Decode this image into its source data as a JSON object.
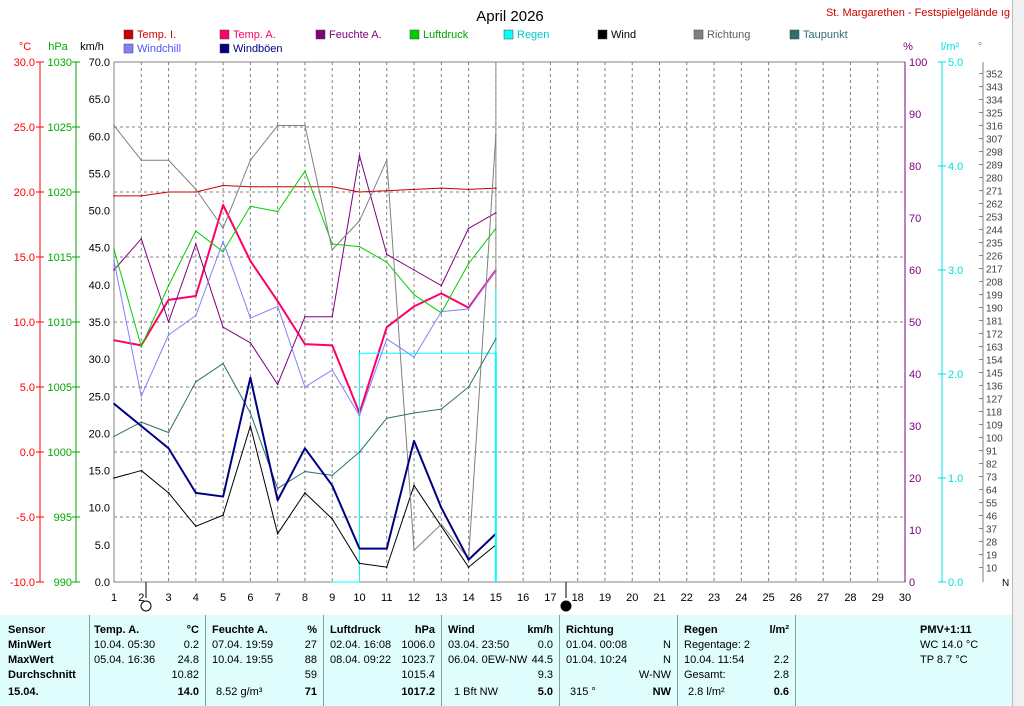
{
  "chart_data": {
    "type": "line",
    "title": "April 2026",
    "station": "St. Margarethen - Festspielgelände ıg",
    "x": [
      1,
      2,
      3,
      4,
      5,
      6,
      7,
      8,
      9,
      10,
      11,
      12,
      13,
      14,
      15
    ],
    "xticks": [
      1,
      2,
      3,
      4,
      5,
      6,
      7,
      8,
      9,
      10,
      11,
      12,
      13,
      14,
      15,
      16,
      17,
      18,
      19,
      20,
      21,
      22,
      23,
      24,
      25,
      26,
      27,
      28,
      29,
      30
    ],
    "xlim": [
      1,
      30
    ],
    "current_day": 15,
    "axes": {
      "temp": {
        "unit": "°C",
        "ylim": [
          -10,
          30
        ],
        "ticks": [
          "30.0",
          "25.0",
          "20.0",
          "15.0",
          "10.0",
          "5.0",
          "0.0",
          "-5.0",
          "-10.0"
        ],
        "color": "#ff0000"
      },
      "press": {
        "unit": "hPa",
        "ylim": [
          990,
          1030
        ],
        "ticks": [
          "1030",
          "1025",
          "1020",
          "1015",
          "1010",
          "1005",
          "1000",
          "995",
          "990"
        ],
        "color": "#00aa00"
      },
      "wind": {
        "unit": "km/h",
        "ylim": [
          0,
          70
        ],
        "ticks": [
          "70.0",
          "65.0",
          "60.0",
          "55.0",
          "50.0",
          "45.0",
          "40.0",
          "35.0",
          "30.0",
          "25.0",
          "20.0",
          "15.0",
          "10.0",
          "5.0",
          "0.0"
        ],
        "color": "#000000"
      },
      "hum": {
        "unit": "%",
        "ylim": [
          0,
          100
        ],
        "ticks": [
          "100",
          "90",
          "80",
          "70",
          "60",
          "50",
          "40",
          "30",
          "20",
          "10",
          "0"
        ],
        "color": "#800080"
      },
      "rain": {
        "unit": "l/m²",
        "ylim": [
          0,
          5
        ],
        "ticks": [
          "5.0",
          "4.0",
          "3.0",
          "2.0",
          "1.0",
          "0.0"
        ],
        "color": "#00e0e0"
      },
      "dir": {
        "unit": "°",
        "ylim": [
          0,
          360
        ],
        "ticks": [
          "352",
          "343",
          "334",
          "325",
          "316",
          "307",
          "298",
          "289",
          "280",
          "271",
          "262",
          "253",
          "244",
          "235",
          "226",
          "217",
          "208",
          "199",
          "190",
          "181",
          "172",
          "163",
          "154",
          "145",
          "136",
          "127",
          "118",
          "109",
          "100",
          "91",
          "82",
          "73",
          "64",
          "55",
          "46",
          "37",
          "28",
          "19",
          "10"
        ],
        "dir_bottom_label": "N"
      }
    },
    "series": [
      {
        "name": "Temp. I.",
        "axis": "temp",
        "color": "#cc0000",
        "width": 1,
        "values": [
          19.7,
          19.7,
          20.0,
          20.0,
          20.5,
          20.4,
          20.4,
          20.4,
          20.4,
          20.0,
          20.1,
          20.2,
          20.3,
          20.2,
          20.3
        ]
      },
      {
        "name": "Temp. A.",
        "axis": "temp",
        "color": "#ff0066",
        "width": 2,
        "values": [
          8.6,
          8.2,
          11.7,
          12.0,
          19.0,
          14.7,
          11.6,
          8.3,
          8.2,
          3.0,
          9.6,
          11.2,
          12.2,
          11.1,
          14.0
        ]
      },
      {
        "name": "Feuchte A.",
        "axis": "hum",
        "color": "#800080",
        "width": 1,
        "values": [
          60,
          66,
          50,
          65,
          49,
          46,
          38,
          51,
          51,
          82,
          63,
          60,
          57,
          68,
          71
        ]
      },
      {
        "name": "Luftdruck",
        "axis": "press",
        "color": "#00d000",
        "width": 1,
        "values": [
          1015.6,
          1008.1,
          1012.8,
          1017.0,
          1015.4,
          1018.9,
          1018.5,
          1021.6,
          1016.0,
          1015.8,
          1014.6,
          1012.1,
          1010.7,
          1014.5,
          1017.2
        ]
      },
      {
        "name": "Regen",
        "axis": "rain",
        "color": "#00ffff",
        "width": 1,
        "values": [
          null,
          null,
          null,
          null,
          null,
          null,
          null,
          null,
          0.0,
          2.2,
          2.2,
          2.2,
          2.2,
          2.2,
          2.8
        ]
      },
      {
        "name": "Wind",
        "axis": "wind",
        "color": "#000000",
        "width": 1,
        "values": [
          14.0,
          15.0,
          12.0,
          7.5,
          9.0,
          21.0,
          6.5,
          12.0,
          8.5,
          2.5,
          2.0,
          13.0,
          7.5,
          2.0,
          5.0
        ]
      },
      {
        "name": "Richtung",
        "axis": "dir",
        "color": "#808080",
        "width": 1,
        "values": [
          316,
          292,
          292,
          272,
          245,
          292,
          316,
          316,
          230,
          250,
          292,
          22,
          40,
          16,
          310
        ]
      },
      {
        "name": "Taupunkt",
        "axis": "temp",
        "color": "#2f6f6f",
        "width": 1,
        "values": [
          1.2,
          2.3,
          1.5,
          5.4,
          6.8,
          3.0,
          -2.8,
          -1.5,
          -1.8,
          0.0,
          2.6,
          3.0,
          3.3,
          5.0,
          8.7
        ]
      },
      {
        "name": "Windchill",
        "axis": "temp",
        "color": "#8080ff",
        "width": 1,
        "values": [
          14.7,
          4.3,
          9.0,
          10.5,
          16.2,
          10.3,
          11.2,
          5.0,
          6.3,
          2.8,
          8.7,
          7.3,
          10.8,
          11.0,
          14.0
        ]
      },
      {
        "name": "Windböen",
        "axis": "wind",
        "color": "#000080",
        "width": 2,
        "values": [
          24.0,
          21.0,
          18.0,
          12.0,
          11.5,
          27.5,
          11.0,
          18.0,
          13.0,
          4.5,
          4.5,
          19.0,
          10.0,
          3.0,
          6.5
        ]
      }
    ]
  },
  "stats": {
    "sensor": {
      "h": "Sensor",
      "min": "MinWert",
      "max": "MaxWert",
      "avg": "Durchschnitt",
      "cur": "15.04."
    },
    "temp": {
      "h": "Temp. A.",
      "unit": "°C",
      "min_t": "10.04.  05:30",
      "min_v": "0.2",
      "max_t": "05.04.  16:36",
      "max_v": "24.8",
      "avg": "10.82",
      "cur": "14.0"
    },
    "hum": {
      "h": "Feuchte A.",
      "unit": "%",
      "min_t": "07.04.  19:59",
      "min_v": "27",
      "max_t": "10.04.  19:55",
      "max_v": "88",
      "avg": "59",
      "cur_l": "8.52 g/m³",
      "cur": "71"
    },
    "press": {
      "h": "Luftdruck",
      "unit": "hPa",
      "min_t": "02.04.  16:08",
      "min_v": "1006.0",
      "max_t": "08.04.  09:22",
      "max_v": "1023.7",
      "avg": "1015.4",
      "cur": "1017.2"
    },
    "wind": {
      "h": "Wind",
      "unit": "km/h",
      "min_t": "03.04.  23:50",
      "min_v": "0.0",
      "max_t": "06.04.  0EW-NW",
      "max_v": "44.5",
      "avg": "9.3",
      "cur_l": "1 Bft NW",
      "cur": "5.0"
    },
    "dir": {
      "h": "Richtung",
      "min_t": "01.04.  00:08",
      "min_v": "N",
      "max_t": "01.04.  10:24",
      "max_v": "N",
      "avg": "W-NW",
      "cur_l": "315 °",
      "cur": "NW"
    },
    "rain": {
      "h": "Regen",
      "unit": "l/m²",
      "min_t": "Regentage: 2",
      "max_t": "10.04.  11:54",
      "max_v": "2.2",
      "avg_l": "Gesamt:",
      "avg": "2.8",
      "cur_l": "2.8 l/m²",
      "cur": "0.6"
    },
    "pmv": {
      "h": "PMV+1:11",
      "wc": "WC 14.0 °C",
      "tp": "TP 8.7 °C"
    }
  }
}
